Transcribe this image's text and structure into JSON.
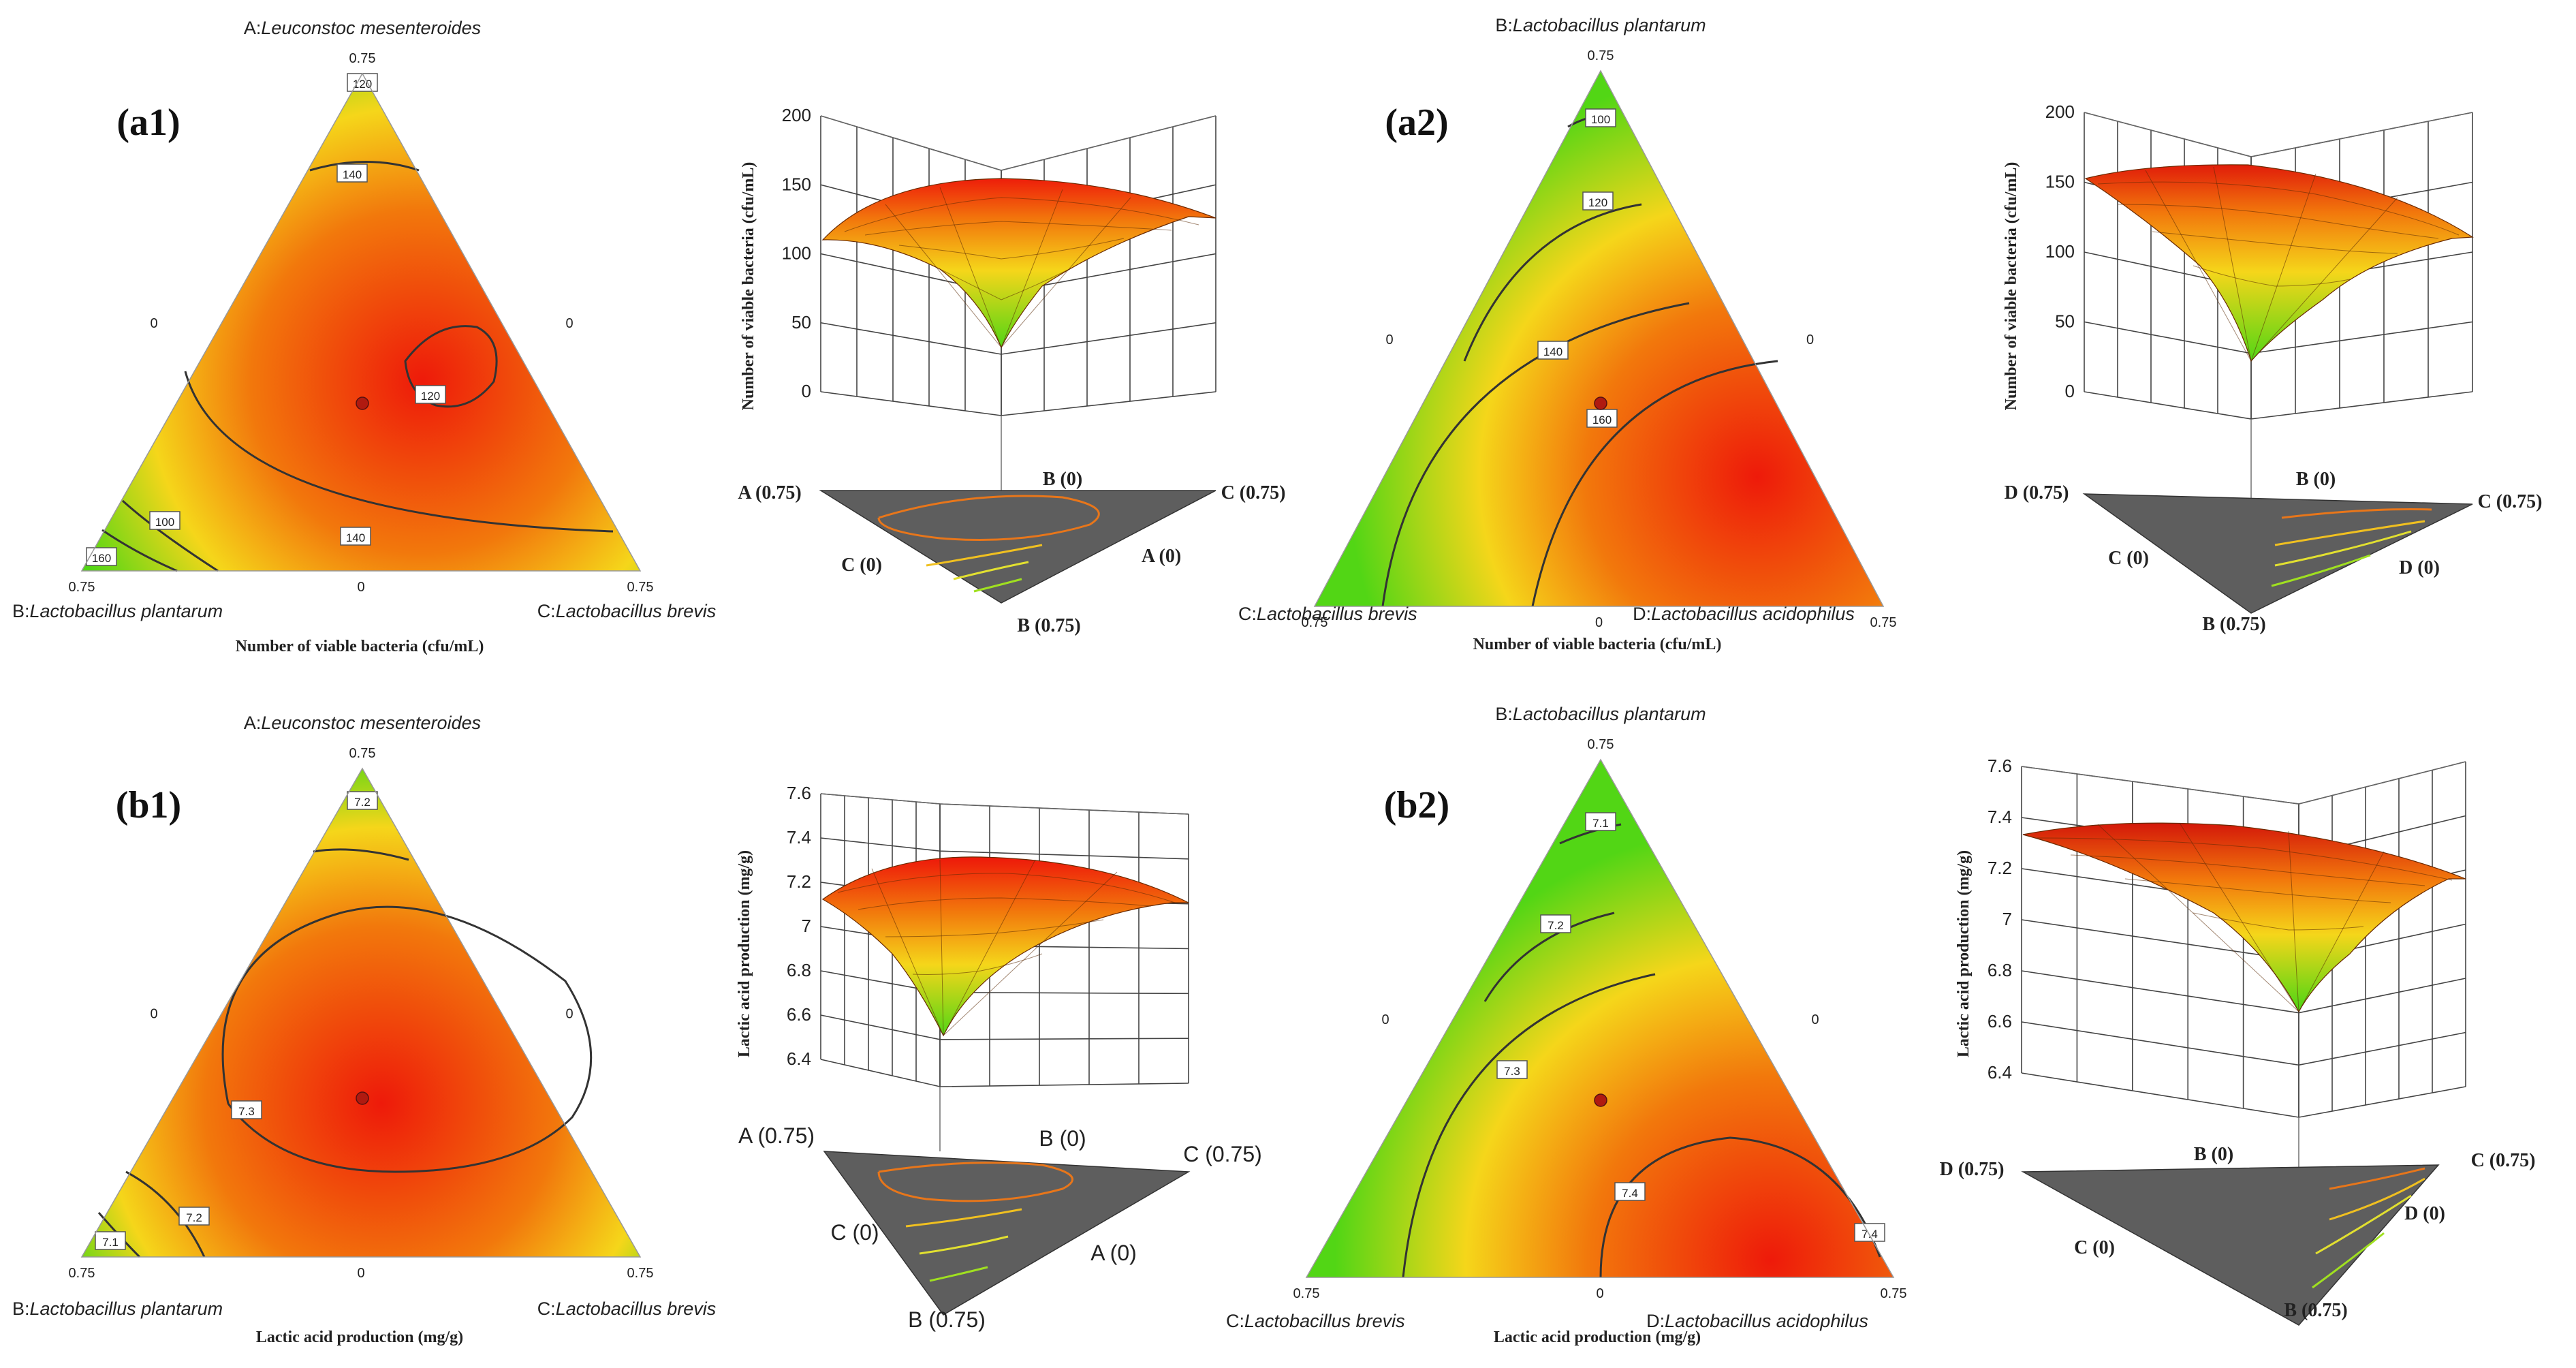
{
  "colors": {
    "red": "#ee1a0a",
    "orange": "#f2780c",
    "yellow": "#f5d61a",
    "green": "#52d615",
    "floor": "#5e5e5e",
    "contour": "#333333",
    "point": "#b01a10"
  },
  "chart_data": [
    {
      "id": "a1",
      "type": "ternary-contour",
      "panel_label": "(a1)",
      "apex_top": {
        "name": "A:",
        "species": "Leuconstoc mesenteroides",
        "value": "0.75"
      },
      "apex_left": {
        "name": "B:",
        "species": "Lactobacillus plantarum",
        "value": "0.75"
      },
      "apex_right": {
        "name": "C:",
        "species": "Lactobacillus brevis",
        "value": "0.75"
      },
      "side_zero_left": "0",
      "side_zero_right": "0",
      "side_zero_bottom": "0",
      "xlabel": "Number of viable bacteria (cfu/mL)",
      "contours": [
        "120",
        "140",
        "160",
        "100",
        "120",
        "140"
      ]
    },
    {
      "id": "a1-3d",
      "type": "surface3d",
      "zlabel": "Number of viable bacteria (cfu/mL)",
      "zticks": [
        "200",
        "150",
        "100",
        "50",
        "0"
      ],
      "axis_labels": [
        "A (0.75)",
        "B (0)",
        "C (0.75)",
        "C (0)",
        "A (0)",
        "B (0.75)"
      ]
    },
    {
      "id": "a2",
      "type": "ternary-contour",
      "panel_label": "(a2)",
      "apex_top": {
        "name": "B:",
        "species": "Lactobacillus plantarum",
        "value": "0.75"
      },
      "apex_left": {
        "name": "C:",
        "species": "Lactobacillus brevis",
        "value": "0.75"
      },
      "apex_right": {
        "name": "D:",
        "species": "Lactobacillus acidophilus",
        "value": "0.75"
      },
      "side_zero_left": "0",
      "side_zero_right": "0",
      "side_zero_bottom": "0",
      "xlabel": "Number of viable bacteria (cfu/mL)",
      "contours": [
        "100",
        "120",
        "140",
        "160"
      ]
    },
    {
      "id": "a2-3d",
      "type": "surface3d",
      "zlabel": "Number of viable bacteria (cfu/mL)",
      "zticks": [
        "200",
        "150",
        "100",
        "50",
        "0"
      ],
      "axis_labels": [
        "D (0.75)",
        "B (0)",
        "C (0.75)",
        "C (0)",
        "D (0)",
        "B (0.75)"
      ]
    },
    {
      "id": "b1",
      "type": "ternary-contour",
      "panel_label": "(b1)",
      "apex_top": {
        "name": "A:",
        "species": "Leuconstoc mesenteroides",
        "value": "0.75"
      },
      "apex_left": {
        "name": "B:",
        "species": "Lactobacillus plantarum",
        "value": "0.75"
      },
      "apex_right": {
        "name": "C:",
        "species": "Lactobacillus brevis",
        "value": "0.75"
      },
      "side_zero_left": "0",
      "side_zero_right": "0",
      "side_zero_bottom": "0",
      "xlabel": "Lactic acid production (mg/g)",
      "contours": [
        "7.2",
        "7.3",
        "7.2",
        "7.1"
      ]
    },
    {
      "id": "b1-3d",
      "type": "surface3d",
      "zlabel": "Lactic acid production (mg/g)",
      "zticks": [
        "7.6",
        "7.4",
        "7.2",
        "7",
        "6.8",
        "6.6",
        "6.4"
      ],
      "axis_labels": [
        "A (0.75)",
        "B (0)",
        "C (0.75)",
        "C (0)",
        "A (0)",
        "B (0.75)"
      ]
    },
    {
      "id": "b2",
      "type": "ternary-contour",
      "panel_label": "(b2)",
      "apex_top": {
        "name": "B:",
        "species": "Lactobacillus plantarum",
        "value": "0.75"
      },
      "apex_left": {
        "name": "C:",
        "species": "Lactobacillus brevis",
        "value": "0.75"
      },
      "apex_right": {
        "name": "D:",
        "species": "Lactobacillus acidophilus",
        "value": "0.75"
      },
      "side_zero_left": "0",
      "side_zero_right": "0",
      "side_zero_bottom": "0",
      "xlabel": "Lactic acid production (mg/g)",
      "contours": [
        "7.1",
        "7.2",
        "7.3",
        "7.4",
        "7.4"
      ]
    },
    {
      "id": "b2-3d",
      "type": "surface3d",
      "zlabel": "Lactic acid production (mg/g)",
      "zticks": [
        "7.6",
        "7.4",
        "7.2",
        "7",
        "6.8",
        "6.6",
        "6.4"
      ],
      "axis_labels": [
        "D (0.75)",
        "B (0)",
        "C (0.75)",
        "C (0)",
        "D (0)",
        "B (0.75)"
      ]
    }
  ]
}
